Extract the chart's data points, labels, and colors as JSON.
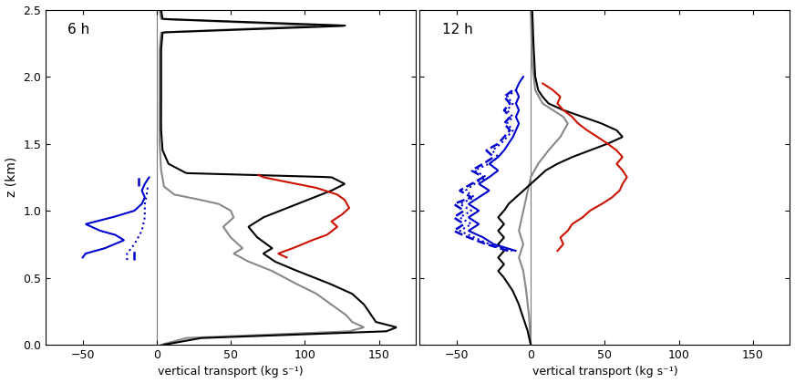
{
  "panel1_label": "6 h",
  "panel2_label": "12 h",
  "xlabel": "vertical transport (kg s⁻¹)",
  "ylabel": "z (km)",
  "xlim1": [
    -75,
    175
  ],
  "xlim2": [
    -75,
    175
  ],
  "ylim": [
    0.0,
    2.5
  ],
  "xticks1": [
    -50,
    0,
    50,
    100,
    150
  ],
  "xticks2": [
    -50,
    0,
    50,
    100,
    150
  ],
  "yticks": [
    0.0,
    0.5,
    1.0,
    1.5,
    2.0,
    2.5
  ],
  "col_black": "#000000",
  "col_gray": "#888888",
  "col_red": "#cc1100",
  "col_blue": "#0000cc",
  "background": "#ffffff"
}
